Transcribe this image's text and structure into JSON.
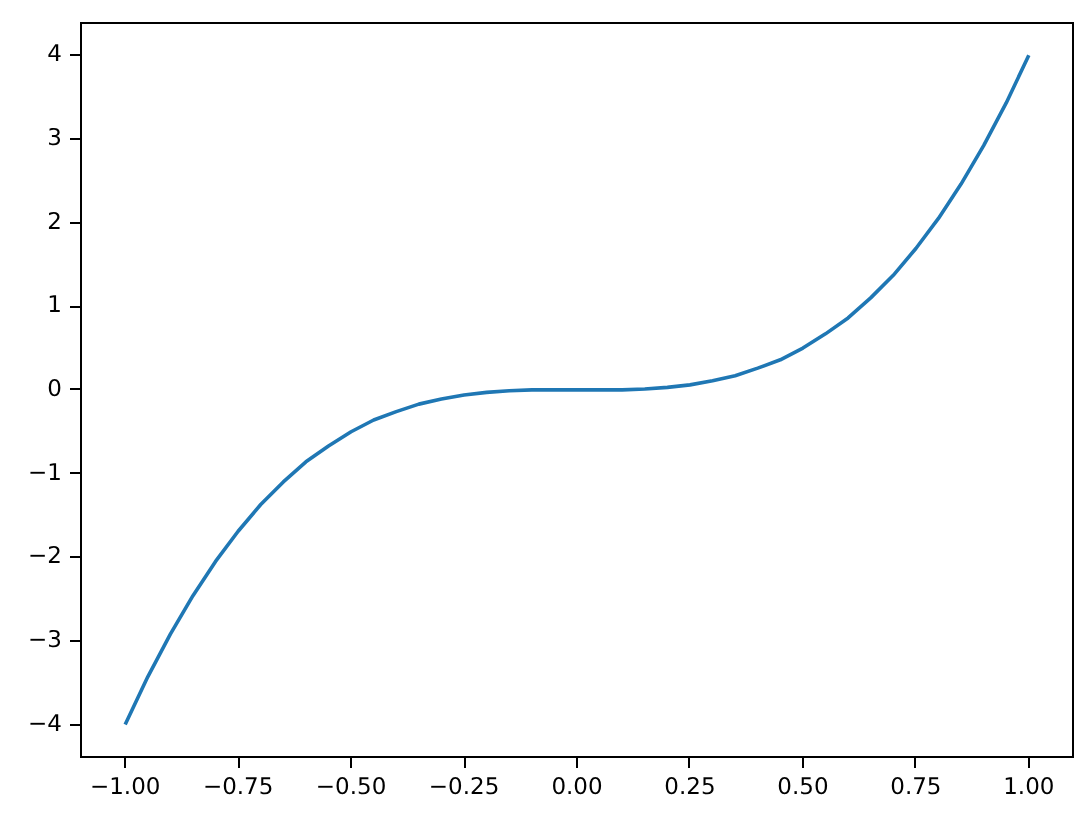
{
  "chart_data": {
    "type": "line",
    "x": [
      -1,
      -0.95,
      -0.9,
      -0.85,
      -0.8,
      -0.75,
      -0.7,
      -0.65,
      -0.6,
      -0.55,
      -0.5,
      -0.45,
      -0.4,
      -0.35,
      -0.3,
      -0.25,
      -0.2,
      -0.15,
      -0.1,
      -0.05,
      0,
      0.05,
      0.1,
      0.15,
      0.2,
      0.25,
      0.3,
      0.35,
      0.4,
      0.45,
      0.5,
      0.55,
      0.6,
      0.65,
      0.7,
      0.75,
      0.8,
      0.85,
      0.9,
      0.95,
      1
    ],
    "series": [
      {
        "color": "#1f77b4",
        "values": [
          -4,
          -3.43,
          -2.92,
          -2.46,
          -2.05,
          -1.69,
          -1.37,
          -1.1,
          -0.86,
          -0.67,
          -0.5,
          -0.36,
          -0.26,
          -0.17,
          -0.11,
          -0.06,
          -0.03,
          -0.01,
          0,
          0,
          0,
          0,
          0,
          0.01,
          0.03,
          0.06,
          0.11,
          0.17,
          0.26,
          0.36,
          0.5,
          0.67,
          0.86,
          1.1,
          1.37,
          1.69,
          2.05,
          2.46,
          2.92,
          3.43,
          4
        ]
      }
    ],
    "xlim": [
      -1.1,
      1.1
    ],
    "ylim": [
      -4.4,
      4.4
    ],
    "xticks": [
      {
        "value": -1,
        "label": "−1.00"
      },
      {
        "value": -0.75,
        "label": "−0.75"
      },
      {
        "value": -0.5,
        "label": "−0.50"
      },
      {
        "value": -0.25,
        "label": "−0.25"
      },
      {
        "value": 0,
        "label": "0.00"
      },
      {
        "value": 0.25,
        "label": "0.25"
      },
      {
        "value": 0.5,
        "label": "0.50"
      },
      {
        "value": 0.75,
        "label": "0.75"
      },
      {
        "value": 1,
        "label": "1.00"
      }
    ],
    "yticks": [
      {
        "value": -4,
        "label": "−4"
      },
      {
        "value": -3,
        "label": "−3"
      },
      {
        "value": -2,
        "label": "−2"
      },
      {
        "value": -1,
        "label": "−1"
      },
      0,
      1,
      2,
      3,
      4
    ]
  }
}
